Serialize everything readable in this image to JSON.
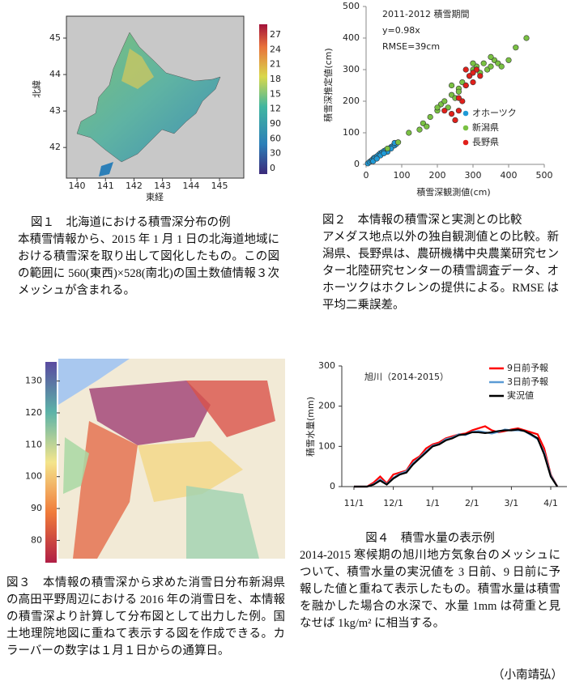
{
  "figures": [
    {
      "chart_data": {
        "type": "map",
        "xlabel": "東経",
        "ylabel": "北緯",
        "xlim": [
          139.63,
          145.85
        ],
        "ylim": [
          41.16,
          45.6
        ],
        "xticks": [
          140,
          141,
          142,
          143,
          144,
          145
        ],
        "yticks": [
          42,
          43,
          44,
          45
        ],
        "colorbar_labels": [
          "27",
          "24",
          "21",
          "18",
          "15",
          "12",
          "90",
          "60",
          "30",
          "0"
        ]
      },
      "caption": {
        "title": "図１　北海道における積雪深分布の例",
        "text": "本積雪情報から、2015 年 1 月 1 日の北海道地域における積雪深を取り出して図化したもの。この図の範囲に 560(東西)×528(南北)の国土数値情報３次メッシュが含まれる。"
      }
    },
    {
      "chart_data": {
        "type": "scatter",
        "xlabel": "積雪深観測値(cm)",
        "ylabel": "積雪深推定値(cm)",
        "annotations": [
          "2011-2012 積雪期間",
          "y=0.98x",
          "RMSE=39cm"
        ],
        "xlim": [
          0,
          500
        ],
        "ylim": [
          0,
          500
        ],
        "xticks": [
          0,
          100,
          200,
          300,
          400,
          500
        ],
        "yticks": [
          0,
          100,
          200,
          300,
          400,
          500
        ],
        "series": [
          {
            "name": "オホーツク",
            "color": "#1f9ad6",
            "x": [
              5,
              10,
              15,
              18,
              22,
              25,
              30,
              35,
              40,
              45,
              50,
              55,
              60,
              65,
              70,
              75,
              80,
              85,
              20,
              40,
              60,
              30,
              50,
              70,
              80
            ],
            "values": [
              3,
              8,
              12,
              15,
              20,
              22,
              25,
              30,
              35,
              38,
              42,
              45,
              48,
              50,
              55,
              58,
              60,
              65,
              10,
              28,
              40,
              18,
              35,
              50,
              68
            ]
          },
          {
            "name": "新潟県",
            "color": "#7ac143",
            "x": [
              60,
              90,
              120,
              150,
              160,
              180,
              200,
              210,
              220,
              230,
              240,
              250,
              260,
              270,
              280,
              290,
              300,
              310,
              320,
              330,
              340,
              350,
              360,
              370,
              380,
              400,
              420,
              450,
              240,
              260,
              300,
              310,
              350,
              200,
              170
            ],
            "values": [
              50,
              70,
              100,
              110,
              130,
              150,
              170,
              190,
              200,
              180,
              220,
              210,
              240,
              260,
              250,
              280,
              300,
              310,
              290,
              320,
              300,
              310,
              330,
              320,
              310,
              330,
              370,
              400,
              250,
              230,
              320,
              300,
              340,
              180,
              120
            ]
          },
          {
            "name": "長野県",
            "color": "#e0201b",
            "x": [
              220,
              240,
              250,
              260,
              270,
              280,
              290,
              300,
              310,
              320,
              280,
              260,
              300
            ],
            "values": [
              170,
              160,
              140,
              170,
              200,
              250,
              280,
              260,
              300,
              280,
              300,
              210,
              290
            ]
          }
        ]
      },
      "caption": {
        "title": "図２　本情報の積雪深と実測との比較",
        "text": "アメダス地点以外の独自観測値との比較。新潟県、長野県は、農研機構中央農業研究センター北陸研究センターの積雪調査データ、オホーツクはホクレンの提供による。RMSE は平均二乗誤差。"
      }
    },
    {
      "chart_data": {
        "type": "map2",
        "clim": [
          73,
          136
        ],
        "colorbar_ticks": [
          80,
          90,
          100,
          110,
          120,
          130
        ]
      },
      "caption": {
        "title": "図３　本情報の積雪深から求めた消雪日分布",
        "text": "新潟県の高田平野周辺における 2016 年の消雪日を、本情報の積雪深より計算して分布図として出力した例。国土地理院地図に重ねて表示する図を作成できる。カラーバーの数字は１月１日からの通算日。"
      }
    },
    {
      "chart_data": {
        "type": "line",
        "ylabel": "積雪水量(mm)",
        "annotation": "旭川（2014-2015）",
        "ylim": [
          0,
          300
        ],
        "yticks": [
          0,
          100,
          200,
          300
        ],
        "categories": [
          "11/1",
          null,
          null,
          null,
          null,
          null,
          "12/1",
          null,
          null,
          null,
          null,
          null,
          "1/1",
          null,
          null,
          null,
          null,
          null,
          "2/1",
          null,
          null,
          null,
          null,
          null,
          "3/1",
          null,
          null,
          null,
          null,
          null,
          "4/1",
          null
        ],
        "series": [
          {
            "name": "9日前予報",
            "color": "#ff0000",
            "values": [
              0,
              0,
              0,
              10,
              25,
              8,
              30,
              35,
              40,
              65,
              75,
              95,
              105,
              110,
              120,
              125,
              130,
              132,
              140,
              145,
              150,
              140,
              135,
              138,
              142,
              145,
              140,
              135,
              130,
              95,
              30,
              0
            ]
          },
          {
            "name": "3日前予報",
            "color": "#5b9bd5",
            "values": [
              0,
              0,
              0,
              6,
              18,
              6,
              22,
              32,
              38,
              58,
              72,
              88,
              102,
              106,
              118,
              122,
              130,
              128,
              136,
              138,
              135,
              132,
              136,
              142,
              140,
              140,
              138,
              128,
              118,
              85,
              28,
              0
            ]
          },
          {
            "name": "実況値",
            "color": "#000000",
            "values": [
              0,
              0,
              0,
              5,
              15,
              5,
              20,
              30,
              35,
              55,
              70,
              85,
              100,
              105,
              115,
              120,
              128,
              130,
              135,
              135,
              133,
              135,
              138,
              140,
              140,
              142,
              138,
              130,
              120,
              80,
              25,
              0
            ]
          }
        ]
      },
      "caption": {
        "title": "図４　積雪水量の表示例",
        "text": "2014-2015 寒候期の旭川地方気象台のメッシュについて、積雪水量の実況値を 3 日前、9 日前に予報した値と重ねて表示したもの。積雪水量は積雪を融かした場合の水深で、水量 1mm は荷重と見なせば 1kg/m² に相当する。"
      }
    }
  ],
  "author": "（小南靖弘）"
}
